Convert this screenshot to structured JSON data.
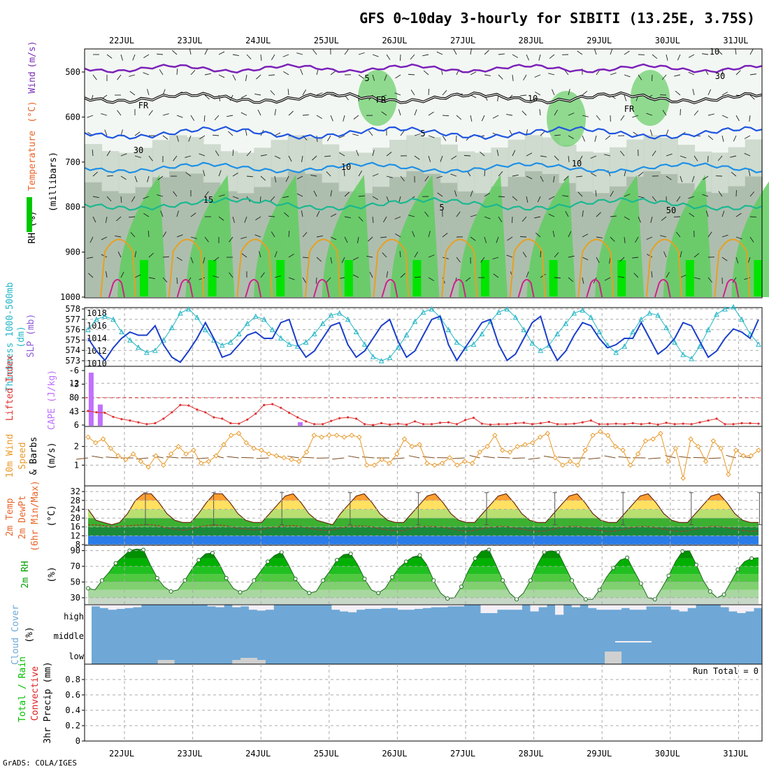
{
  "title": "GFS 0~10day 3-hourly for SIBITI (13.25E, 3.75S)",
  "credit": "GrADS: COLA/IGES",
  "dates": [
    "22JUL",
    "23JUL",
    "24JUL",
    "25JUL",
    "26JUL",
    "27JUL",
    "28JUL",
    "29JUL",
    "30JUL",
    "31JUL"
  ],
  "colors": {
    "temp": "#e8652a",
    "wind": "#7a2fb5",
    "rh": "#00c800",
    "thick": "#22b6c6",
    "slp": "#1a3ecc",
    "cape": "#c070ff",
    "li": "#e03030",
    "wind10": "#e89a2a",
    "precip_total": "#00c000",
    "precip_conv": "#e02020",
    "cloud": "#6fa8d6"
  },
  "chart_data": [
    {
      "type": "heatmap",
      "panel": "upper-air",
      "ylabel_parts": [
        "RH (%)",
        "Temperature",
        "(°C)",
        "Wind",
        "(m/s)"
      ],
      "ylabel_axis": "(millibars)",
      "yticks": [
        500,
        600,
        700,
        800,
        900,
        1000
      ],
      "contour_labels": [
        "5",
        "FR",
        "FR",
        "FR",
        "5",
        "10",
        "10",
        "15",
        "5",
        "30",
        "30",
        "10",
        "10",
        "50"
      ]
    },
    {
      "type": "line",
      "panel": "thickness-slp",
      "ylabel_left": "1000-500mb Thickness (dm)",
      "ylabel_right": "SLP (mb)",
      "yticks_left": [
        573,
        574,
        575,
        576,
        577,
        578
      ],
      "yticks_right": [
        1010,
        1012,
        1014,
        1016,
        1018
      ],
      "series": [
        {
          "name": "Thickness",
          "axis": "left",
          "values": [
            576.0,
            577.0,
            577.3,
            577.0,
            575.8,
            575.0,
            574.3,
            573.8,
            574.0,
            575.0,
            576.2,
            577.6,
            578.0,
            577.2,
            576.0,
            575.0,
            574.5,
            574.8,
            575.6,
            576.6,
            577.3,
            577.0,
            576.0,
            575.2,
            574.6,
            574.4,
            574.8,
            575.6,
            576.6,
            577.4,
            577.6,
            577.0,
            575.8,
            574.6,
            573.4,
            573.0,
            573.3,
            574.3,
            575.5,
            576.8,
            577.7,
            578.0,
            577.2,
            576.0,
            574.8,
            574.2,
            574.6,
            575.6,
            576.8,
            577.7,
            578.0,
            577.2,
            576.0,
            574.7,
            574.0,
            574.5,
            575.6,
            576.6,
            577.6,
            577.9,
            577.2,
            575.8,
            574.5,
            573.8,
            574.4,
            575.8,
            577.0,
            577.6,
            577.4,
            576.2,
            574.8,
            573.6,
            573.2,
            574.4,
            576.0,
            577.5,
            578.0,
            578.2,
            577.0,
            575.6,
            574.6
          ]
        },
        {
          "name": "SLP",
          "axis": "right",
          "values": [
            1014.0,
            1012.0,
            1010.5,
            1012.5,
            1014.0,
            1015.0,
            1014.5,
            1014.5,
            1016.0,
            1013.0,
            1011.0,
            1010.2,
            1012.0,
            1014.0,
            1016.5,
            1014.0,
            1011.0,
            1011.5,
            1013.0,
            1014.5,
            1015.0,
            1014.0,
            1014.0,
            1016.5,
            1017.0,
            1013.0,
            1011.0,
            1012.0,
            1014.0,
            1016.0,
            1016.5,
            1013.0,
            1011.0,
            1012.0,
            1014.0,
            1016.0,
            1017.0,
            1013.5,
            1011.0,
            1012.0,
            1014.5,
            1017.0,
            1017.5,
            1013.0,
            1010.5,
            1012.5,
            1014.5,
            1016.5,
            1017.0,
            1013.0,
            1010.5,
            1011.5,
            1014.0,
            1016.5,
            1017.5,
            1013.0,
            1010.5,
            1012.0,
            1014.5,
            1016.5,
            1016.0,
            1014.0,
            1012.5,
            1013.0,
            1014.0,
            1014.0,
            1016.5,
            1014.0,
            1011.5,
            1012.5,
            1014.0,
            1016.5,
            1016.0,
            1013.5,
            1011.0,
            1012.0,
            1014.0,
            1015.5,
            1015.0,
            1014.0,
            1017.0
          ]
        }
      ]
    },
    {
      "type": "bar",
      "panel": "cape-li",
      "ylabel_left": "Lifted Index",
      "ylabel_right": "CAPE (J/kg)",
      "yticks_left": [
        "-6",
        "-3",
        "0",
        "3",
        "6"
      ],
      "yticks_right": [
        4,
        8,
        12
      ],
      "cape": [
        {
          "x": 0.3,
          "value": 15
        },
        {
          "x": 1.3,
          "value": 6
        },
        {
          "x": 23.3,
          "value": 1
        }
      ],
      "lifted_index": {
        "name": "Lifted Index",
        "values": [
          2.9,
          3.2,
          3.3,
          4.2,
          4.7,
          5.0,
          5.4,
          5.8,
          5.6,
          4.6,
          3.2,
          1.6,
          1.7,
          2.6,
          3.2,
          4.3,
          4.6,
          5.6,
          5.7,
          4.8,
          3.5,
          1.6,
          1.4,
          2.2,
          3.3,
          4.3,
          5.2,
          5.8,
          5.8,
          5.1,
          4.5,
          4.3,
          4.6,
          5.8,
          6.0,
          5.6,
          5.9,
          5.7,
          5.9,
          5.2,
          5.8,
          5.8,
          5.5,
          5.4,
          5.8,
          4.9,
          4.4,
          5.7,
          5.9,
          5.8,
          5.8,
          5.6,
          5.5,
          5.8,
          5.6,
          5.3,
          5.8,
          5.8,
          5.7,
          5.4,
          5.0,
          5.8,
          5.8,
          5.7,
          5.8,
          5.6,
          5.8,
          5.6,
          5.9,
          5.5,
          5.8,
          5.7,
          5.8,
          5.4,
          5.0,
          4.6,
          5.8,
          5.8,
          5.6,
          5.6,
          5.7
        ]
      }
    },
    {
      "type": "line",
      "panel": "wind10m",
      "ylabel": "10m Wind Speed & Barbs (m/s)",
      "yticks": [
        1,
        2
      ],
      "series": [
        {
          "name": "10m Wind Speed",
          "values": [
            2.5,
            2.2,
            2.4,
            1.9,
            1.5,
            1.3,
            1.6,
            1.2,
            0.9,
            1.5,
            1.0,
            1.6,
            2.0,
            1.6,
            1.8,
            1.1,
            1.2,
            1.5,
            2.1,
            2.6,
            2.7,
            2.2,
            1.9,
            1.8,
            1.6,
            1.5,
            1.4,
            1.3,
            1.2,
            1.7,
            2.6,
            2.5,
            2.6,
            2.6,
            2.5,
            2.6,
            2.5,
            1.0,
            1.0,
            1.3,
            1.1,
            1.6,
            2.4,
            2.0,
            2.1,
            1.1,
            1.0,
            1.1,
            1.4,
            1.0,
            1.2,
            1.1,
            1.7,
            2.0,
            2.6,
            1.8,
            1.7,
            2.0,
            2.1,
            2.2,
            2.5,
            2.7,
            1.4,
            1.0,
            1.2,
            1.0,
            1.8,
            2.6,
            2.8,
            2.6,
            2.0,
            1.8,
            1.0,
            1.6,
            2.3,
            2.4,
            2.7,
            1.2,
            1.9,
            0.3,
            2.4,
            2.0,
            1.2,
            2.3,
            1.9,
            0.5,
            1.8,
            1.5,
            1.5,
            1.8
          ]
        }
      ]
    },
    {
      "type": "area",
      "panel": "temp2m",
      "ylabel": "2m Temp 2m DewPt (6hr Min/Max) (°C)",
      "yticks": [
        8,
        12,
        16,
        20,
        24,
        28,
        32
      ],
      "series": [
        {
          "name": "2m Temp",
          "values": [
            24,
            19,
            18,
            17,
            18,
            22,
            28,
            31,
            31,
            27,
            22,
            19,
            18,
            18,
            22,
            27,
            31,
            31,
            27,
            22,
            19,
            18,
            18,
            22,
            26,
            30,
            31,
            27,
            22,
            19,
            18,
            17,
            22,
            26,
            30,
            31,
            27,
            22,
            19,
            18,
            18,
            22,
            26,
            30,
            31,
            27,
            22,
            19,
            18,
            18,
            22,
            26,
            30,
            31,
            27,
            22,
            19,
            18,
            18,
            22,
            26,
            30,
            31,
            27,
            22,
            19,
            18,
            18,
            22,
            26,
            30,
            31,
            27,
            22,
            19,
            18,
            18,
            22,
            26,
            30,
            31,
            27,
            22,
            19,
            18,
            18
          ]
        },
        {
          "name": "2m DewPt",
          "values": [
            17,
            17,
            16.5,
            16,
            16.2,
            16.5,
            16.8,
            17,
            17,
            16.5,
            15.5,
            15,
            14.5,
            15,
            16,
            16.6,
            16.8,
            16.8,
            16.2,
            15.4,
            15,
            14.6,
            14.8,
            15.6,
            16,
            16.4,
            16.6,
            16.2,
            15.4,
            14.8,
            14.4,
            14.6,
            15.4,
            16.2,
            16.4,
            16.4,
            16,
            15.2,
            14.6,
            14.2,
            14.4,
            15.2,
            16,
            16.2,
            16.2,
            15.8,
            15.2,
            14.4,
            14.2,
            14.4,
            15.2,
            15.8,
            16.2,
            16.2,
            15.6,
            15,
            14.4,
            14,
            14.2,
            15,
            15.8,
            16.2,
            16.2,
            15.6,
            15,
            14.4,
            14,
            14.2,
            15,
            15.8,
            16.2,
            16.2,
            15.6,
            15,
            14.4,
            14,
            14.2,
            15,
            15.6,
            16.2,
            16.2,
            15.6,
            15,
            14.4,
            14,
            14.2
          ]
        }
      ]
    },
    {
      "type": "area",
      "panel": "rh2m",
      "ylabel": "2m RH (%)",
      "yticks": [
        30,
        50,
        70,
        90
      ],
      "series": [
        {
          "name": "2m RH",
          "values": [
            42,
            40,
            52,
            62,
            74,
            82,
            90,
            92,
            91,
            72,
            55,
            44,
            38,
            40,
            52,
            66,
            78,
            86,
            87,
            73,
            55,
            42,
            37,
            40,
            52,
            64,
            76,
            84,
            88,
            72,
            54,
            42,
            36,
            38,
            52,
            64,
            78,
            85,
            86,
            72,
            54,
            40,
            36,
            42,
            56,
            68,
            76,
            82,
            84,
            72,
            52,
            36,
            29,
            30,
            44,
            64,
            80,
            90,
            91,
            72,
            52,
            36,
            28,
            36,
            52,
            72,
            88,
            90,
            88,
            70,
            52,
            36,
            28,
            28,
            40,
            56,
            68,
            78,
            81,
            64,
            48,
            30,
            28,
            42,
            58,
            76,
            89,
            90,
            72,
            52,
            38,
            30,
            34,
            50,
            66,
            76,
            80,
            81
          ]
        }
      ]
    },
    {
      "type": "bar",
      "panel": "cloud",
      "ylabel": "Cloud Cover (%)",
      "yticks": [
        "high",
        "middle",
        "low"
      ],
      "high_cover": [
        0.9,
        0.8,
        0.7,
        0.75,
        0.8,
        0.85,
        1,
        1,
        1,
        1,
        1,
        1,
        1,
        1,
        0.9,
        0.85,
        1,
        0.85,
        0.9,
        0.7,
        0.65,
        0.7,
        1,
        1,
        1,
        1,
        1,
        1,
        1,
        0.7,
        0.6,
        0.55,
        0.7,
        0.75,
        0.75,
        0.8,
        0.8,
        0.7,
        0.7,
        0.75,
        0.8,
        0.85,
        0.85,
        0.9,
        0.9,
        1,
        1,
        0.5,
        0.5,
        0.7,
        0.7,
        0.7,
        1,
        0.6,
        0.85,
        1,
        0.4,
        1,
        0.85,
        1,
        0.8,
        0.7,
        0.7,
        0.7,
        0.8,
        0.7,
        0.7,
        0.9,
        0.9,
        0.9,
        0.7,
        0.6,
        0.8,
        1,
        1,
        1,
        0.85,
        0.6,
        0.5,
        0.6,
        0.8
      ],
      "low_cover": [
        0,
        0,
        0,
        0,
        0,
        0,
        0,
        0,
        0.1,
        0.1,
        0,
        0,
        0,
        0,
        0,
        0,
        0,
        0.1,
        0.15,
        0.15,
        0.1,
        0,
        0,
        0,
        0,
        0,
        0,
        0,
        0,
        0,
        0,
        0,
        0,
        0,
        0,
        0,
        0,
        0,
        0,
        0,
        0,
        0,
        0,
        0,
        0,
        0,
        0,
        0,
        0,
        0,
        0,
        0,
        0,
        0,
        0,
        0,
        0,
        0,
        0,
        0,
        0,
        0,
        0.3,
        0.3,
        0,
        0,
        0,
        0,
        0,
        0,
        0,
        0,
        0,
        0,
        0,
        0,
        0,
        0,
        0,
        0,
        0
      ]
    },
    {
      "type": "bar",
      "panel": "precip",
      "ylabel_parts": [
        "Total / Rain",
        "Convective",
        "3hr Precip (mm)"
      ],
      "yticks": [
        "0",
        "0.2",
        "0.4",
        "0.6",
        "0.8"
      ],
      "annotation": "Run Total = 0",
      "values": []
    }
  ]
}
